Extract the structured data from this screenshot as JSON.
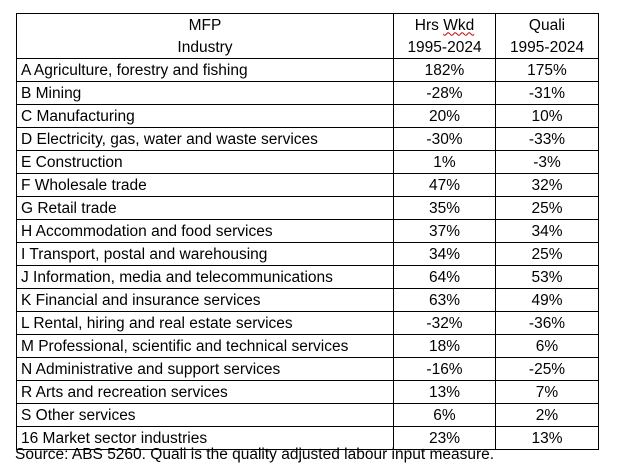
{
  "table": {
    "header": {
      "industry_top": "MFP",
      "industry_bottom": "Industry",
      "hrs_top_prefix": "Hrs",
      "hrs_top_word": "Wkd",
      "hrs_bottom": "1995-2024",
      "quali_top": "Quali",
      "quali_bottom": "1995-2024"
    },
    "rows": [
      {
        "industry": "A Agriculture, forestry and fishing",
        "hrs_wkd": "182%",
        "quali": "175%"
      },
      {
        "industry": "B Mining",
        "hrs_wkd": "-28%",
        "quali": "-31%"
      },
      {
        "industry": "C Manufacturing",
        "hrs_wkd": "20%",
        "quali": "10%"
      },
      {
        "industry": "D Electricity, gas, water and waste services",
        "hrs_wkd": "-30%",
        "quali": "-33%"
      },
      {
        "industry": "E Construction",
        "hrs_wkd": "1%",
        "quali": "-3%"
      },
      {
        "industry": "F Wholesale trade",
        "hrs_wkd": "47%",
        "quali": "32%"
      },
      {
        "industry": "G Retail trade",
        "hrs_wkd": "35%",
        "quali": "25%"
      },
      {
        "industry": "H Accommodation and food services",
        "hrs_wkd": "37%",
        "quali": "34%"
      },
      {
        "industry": "I Transport, postal and warehousing",
        "hrs_wkd": "34%",
        "quali": "25%"
      },
      {
        "industry": "J Information, media and telecommunications",
        "hrs_wkd": "64%",
        "quali": "53%"
      },
      {
        "industry": "K Financial and insurance services",
        "hrs_wkd": "63%",
        "quali": "49%"
      },
      {
        "industry": "L Rental, hiring and real estate services",
        "hrs_wkd": "-32%",
        "quali": "-36%"
      },
      {
        "industry": "M Professional, scientific and technical services",
        "hrs_wkd": "18%",
        "quali": "6%"
      },
      {
        "industry": "N Administrative and support services",
        "hrs_wkd": "-16%",
        "quali": "-25%"
      },
      {
        "industry": "R Arts and recreation services",
        "hrs_wkd": "13%",
        "quali": "7%"
      },
      {
        "industry": "S Other services",
        "hrs_wkd": "6%",
        "quali": "2%"
      },
      {
        "industry": "16 Market sector industries",
        "hrs_wkd": "23%",
        "quali": "13%"
      }
    ]
  },
  "source_note": "Source: ABS 5260. Quali is the quality adjusted labour input measure."
}
